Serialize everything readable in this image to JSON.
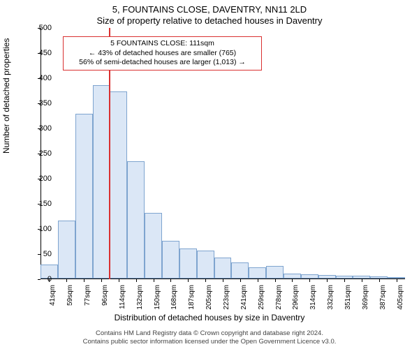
{
  "title_main": "5, FOUNTAINS CLOSE, DAVENTRY, NN11 2LD",
  "title_sub": "Size of property relative to detached houses in Daventry",
  "ylabel": "Number of detached properties",
  "xlabel": "Distribution of detached houses by size in Daventry",
  "footer_line1": "Contains HM Land Registry data © Crown copyright and database right 2024.",
  "footer_line2": "Contains public sector information licensed under the Open Government Licence v3.0.",
  "chart": {
    "type": "histogram",
    "background_color": "#ffffff",
    "axis_color": "#000000",
    "bar_fill": "#dbe7f6",
    "bar_border": "#7ea4cf",
    "refline_color": "#d93030",
    "ylim": [
      0,
      500
    ],
    "ytick_step": 50,
    "x_tick_labels": [
      "41sqm",
      "59sqm",
      "77sqm",
      "96sqm",
      "114sqm",
      "132sqm",
      "150sqm",
      "168sqm",
      "187sqm",
      "205sqm",
      "223sqm",
      "241sqm",
      "259sqm",
      "278sqm",
      "296sqm",
      "314sqm",
      "332sqm",
      "351sqm",
      "369sqm",
      "387sqm",
      "405sqm"
    ],
    "bar_values": [
      28,
      115,
      328,
      385,
      372,
      234,
      130,
      75,
      60,
      55,
      42,
      32,
      22,
      25,
      10,
      8,
      7,
      6,
      5,
      4,
      3
    ],
    "refline_category_index": 4,
    "annotation": {
      "border_color": "#d93030",
      "lines": [
        "5 FOUNTAINS CLOSE: 111sqm",
        "← 43% of detached houses are smaller (765)",
        "56% of semi-detached houses are larger (1,013) →"
      ],
      "fontsize": 10.5
    },
    "label_fontsize": 12,
    "tick_fontsize": 11,
    "xtick_fontsize": 10
  }
}
